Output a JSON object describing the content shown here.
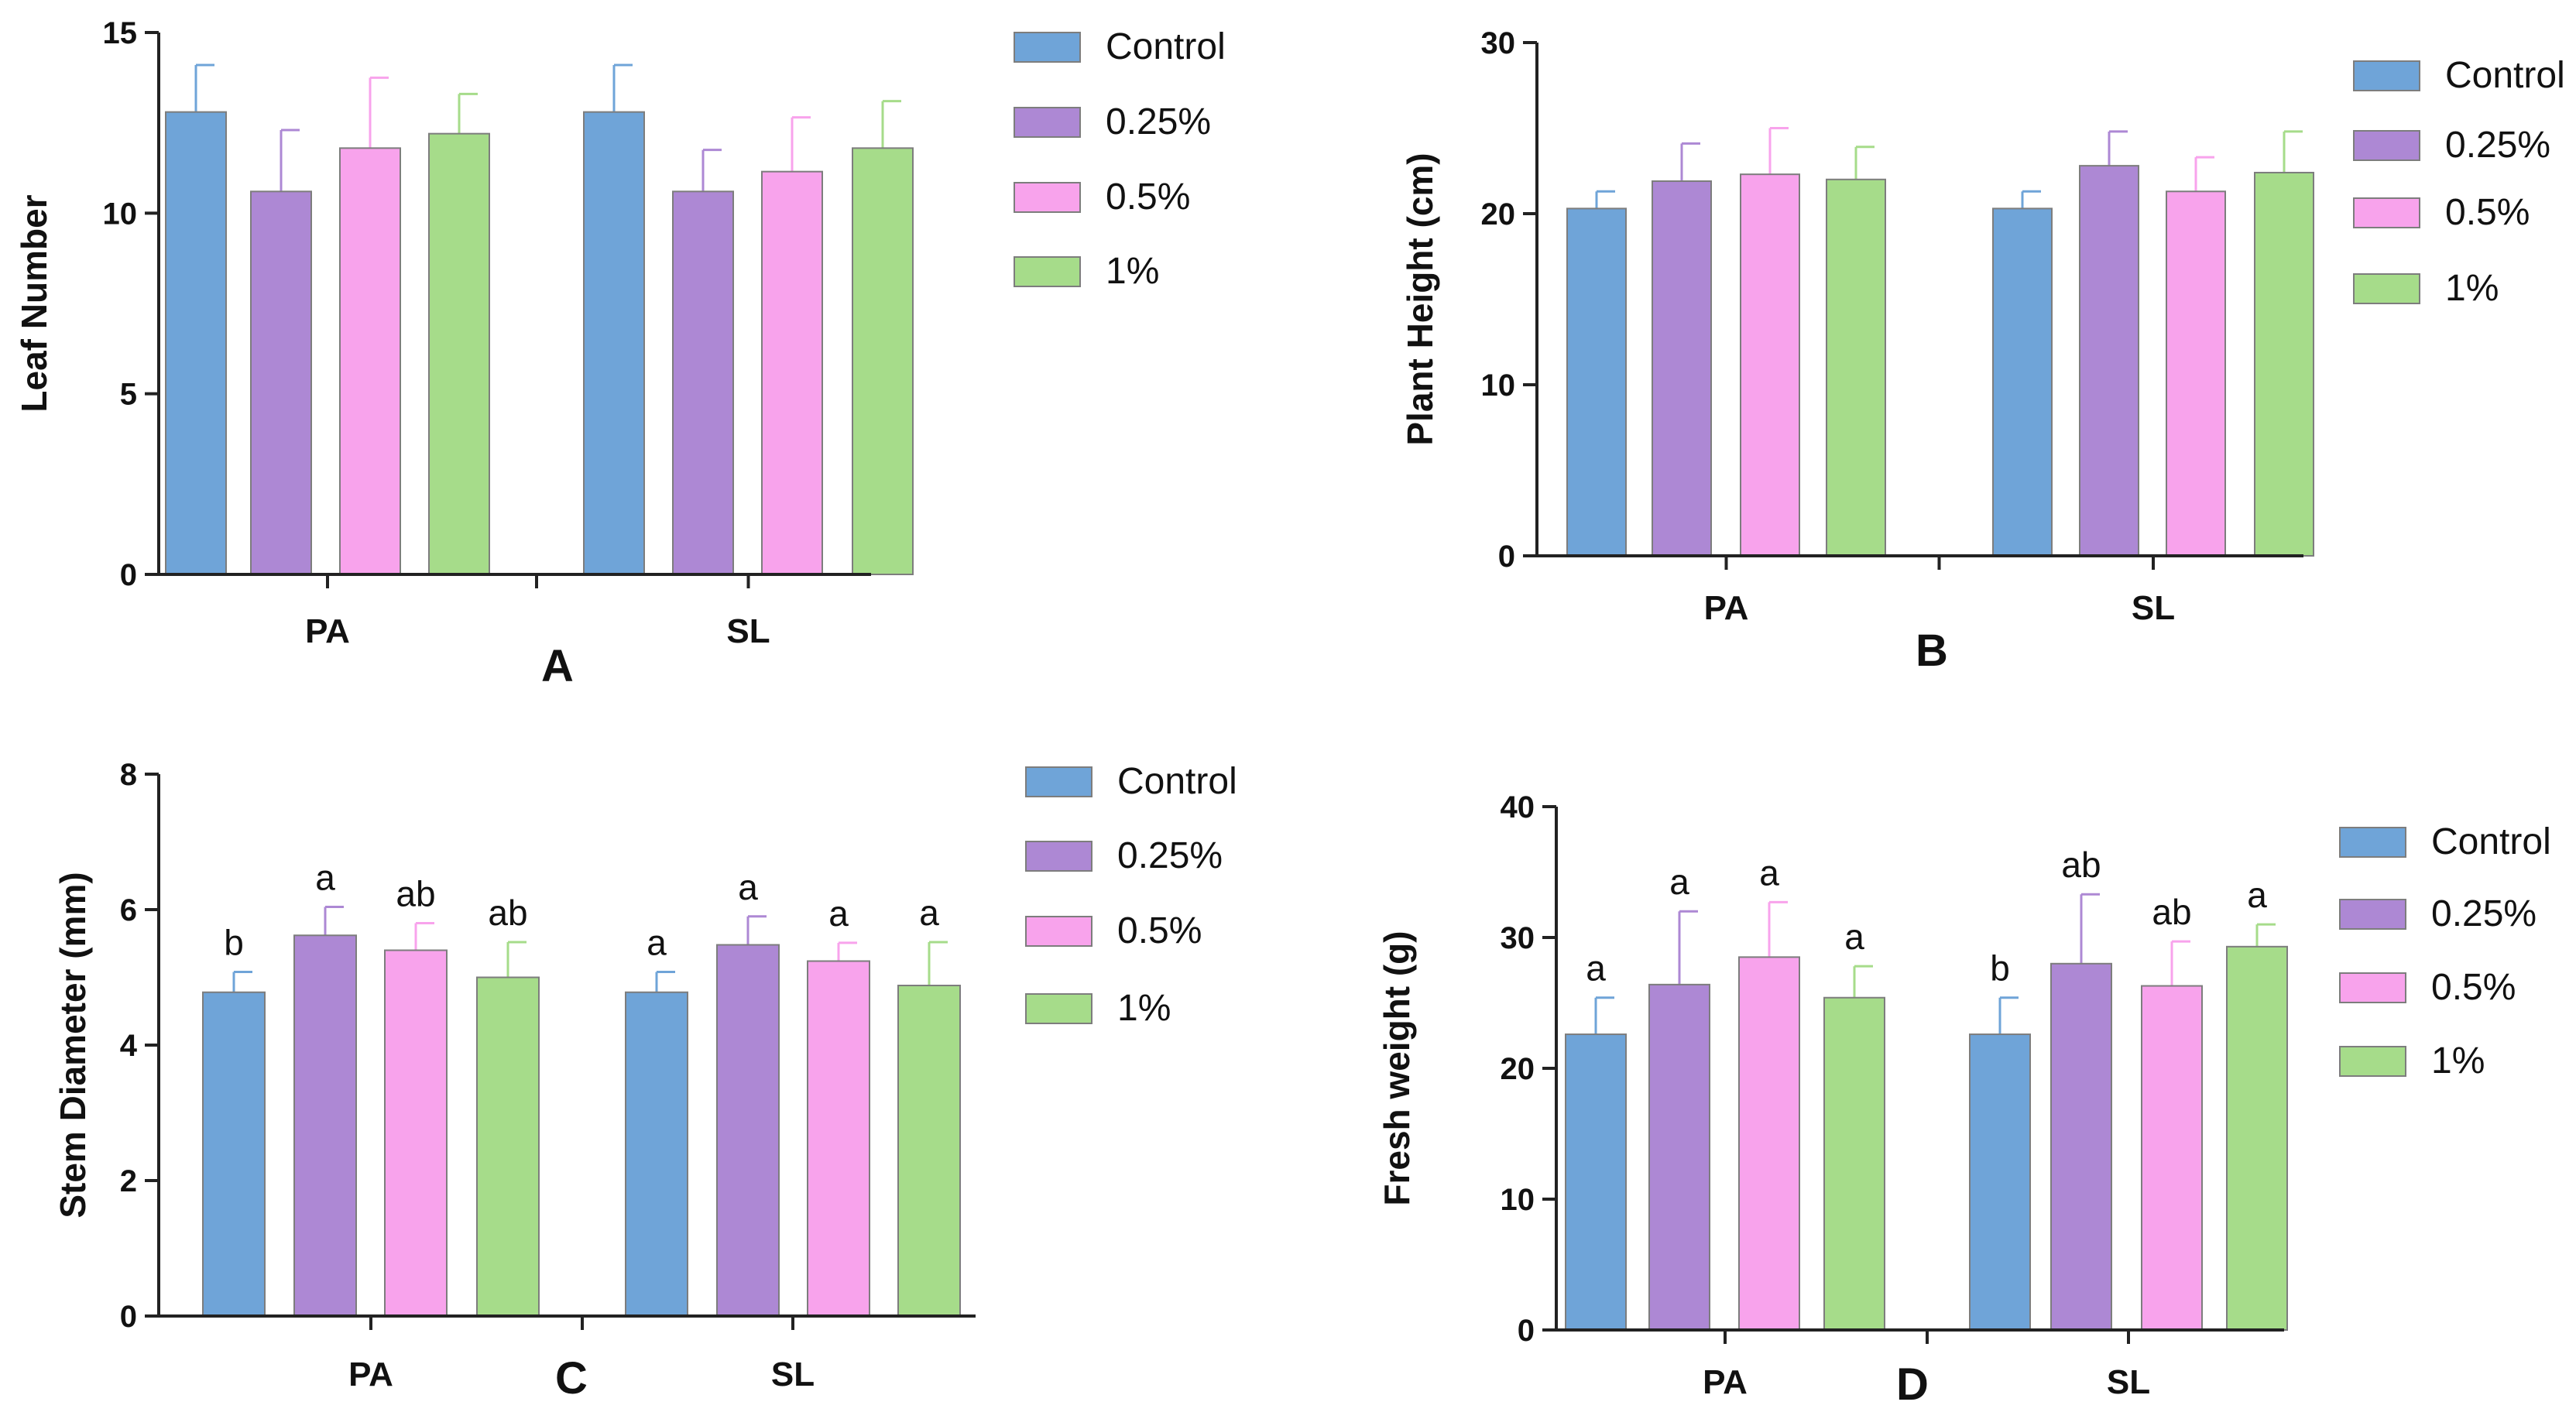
{
  "colors": {
    "Control": "#6fa4d8",
    "0.25%": "#ad88d4",
    "0.5%": "#f8a3ec",
    "1%": "#a6dc8a",
    "axis": "#222222"
  },
  "chart_data": [
    {
      "type": "bar",
      "panel": "A",
      "ylabel": "Leaf Number",
      "ylim": [
        0,
        15
      ],
      "yticks": [
        0,
        5,
        10,
        15
      ],
      "categories": [
        "PA",
        "SL"
      ],
      "series": [
        {
          "name": "Control",
          "values": [
            12.8,
            12.8
          ],
          "errors": [
            1.3,
            1.3
          ]
        },
        {
          "name": "0.25%",
          "values": [
            10.6,
            10.6
          ],
          "errors": [
            1.7,
            1.15
          ]
        },
        {
          "name": "0.5%",
          "values": [
            11.8,
            11.15
          ],
          "errors": [
            1.95,
            1.5
          ]
        },
        {
          "name": "1%",
          "values": [
            12.2,
            11.8
          ],
          "errors": [
            1.1,
            1.3
          ]
        }
      ]
    },
    {
      "type": "bar",
      "panel": "B",
      "ylabel": "Plant Height (cm)",
      "ylim": [
        0,
        30
      ],
      "yticks": [
        0,
        10,
        20,
        30
      ],
      "categories": [
        "PA",
        "SL"
      ],
      "series": [
        {
          "name": "Control",
          "values": [
            20.3,
            20.3
          ],
          "errors": [
            1.0,
            1.0
          ]
        },
        {
          "name": "0.25%",
          "values": [
            21.9,
            22.8
          ],
          "errors": [
            2.2,
            2.0
          ]
        },
        {
          "name": "0.5%",
          "values": [
            22.3,
            21.3
          ],
          "errors": [
            2.7,
            2.0
          ]
        },
        {
          "name": "1%",
          "values": [
            22.0,
            22.4
          ],
          "errors": [
            1.9,
            2.4
          ]
        }
      ]
    },
    {
      "type": "bar",
      "panel": "C",
      "ylabel": "Stem Diameter (mm)",
      "ylim": [
        0,
        8
      ],
      "yticks": [
        0,
        2,
        4,
        6,
        8
      ],
      "categories": [
        "PA",
        "SL"
      ],
      "series": [
        {
          "name": "Control",
          "values": [
            4.78,
            4.78
          ],
          "errors": [
            0.3,
            0.3
          ],
          "labels": [
            "b",
            "a"
          ]
        },
        {
          "name": "0.25%",
          "values": [
            5.62,
            5.48
          ],
          "errors": [
            0.42,
            0.42
          ],
          "labels": [
            "a",
            "a"
          ]
        },
        {
          "name": "0.5%",
          "values": [
            5.4,
            5.24
          ],
          "errors": [
            0.4,
            0.27
          ],
          "labels": [
            "ab",
            "a"
          ]
        },
        {
          "name": "1%",
          "values": [
            5.0,
            4.88
          ],
          "errors": [
            0.52,
            0.64
          ],
          "labels": [
            "ab",
            "a"
          ]
        }
      ]
    },
    {
      "type": "bar",
      "panel": "D",
      "ylabel": "Fresh weight (g)",
      "ylim": [
        0,
        40
      ],
      "yticks": [
        0,
        10,
        20,
        30,
        40
      ],
      "categories": [
        "PA",
        "SL"
      ],
      "series": [
        {
          "name": "Control",
          "values": [
            22.6,
            22.6
          ],
          "errors": [
            2.8,
            2.8
          ],
          "labels": [
            "a",
            "b"
          ]
        },
        {
          "name": "0.25%",
          "values": [
            26.4,
            28.0
          ],
          "errors": [
            5.6,
            5.3
          ],
          "labels": [
            "a",
            "ab"
          ]
        },
        {
          "name": "0.5%",
          "values": [
            28.5,
            26.3
          ],
          "errors": [
            4.2,
            3.4
          ],
          "labels": [
            "a",
            "ab"
          ]
        },
        {
          "name": "1%",
          "values": [
            25.4,
            29.3
          ],
          "errors": [
            2.4,
            1.7
          ],
          "labels": [
            "a",
            "a"
          ]
        }
      ]
    }
  ]
}
